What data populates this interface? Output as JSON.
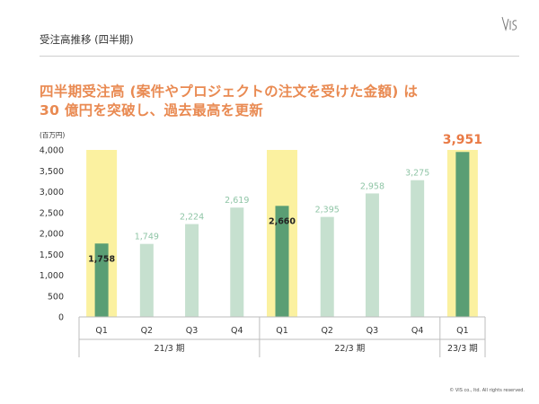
{
  "header": {
    "title": "受注高推移 (四半期)"
  },
  "headline": {
    "line1": "四半期受注高 (案件やプロジェクトの注文を受けた金額) は",
    "line2": "30 億円を突破し、過去最高を更新"
  },
  "footer": {
    "copyright": "© VIS co., ltd. All rights reserved."
  },
  "colors": {
    "accent": "#e98a52",
    "bar_dark": "#5a9e74",
    "bar_light": "#c6e0cf",
    "label_light": "#8fc5a6",
    "highlight": "#fbf1a0",
    "peak_label": "#e97a45"
  },
  "chart_data": {
    "type": "bar",
    "unit_label": "(百万円)",
    "ylim": [
      0,
      4000
    ],
    "y_ticks": [
      "0",
      "500",
      "1,000",
      "1,500",
      "2,000",
      "2,500",
      "3,000",
      "3,500",
      "4,000"
    ],
    "categories": [
      "Q1",
      "Q2",
      "Q3",
      "Q4",
      "Q1",
      "Q2",
      "Q3",
      "Q4",
      "Q1"
    ],
    "values": [
      1758,
      1749,
      2224,
      2619,
      2660,
      2395,
      2958,
      3275,
      3951
    ],
    "value_labels": [
      "1,758",
      "1,749",
      "2,224",
      "2,619",
      "2,660",
      "2,395",
      "2,958",
      "3,275",
      "3,951"
    ],
    "highlighted": [
      true,
      false,
      false,
      false,
      true,
      false,
      false,
      false,
      true
    ],
    "groups": [
      {
        "label": "21/3 期",
        "count": 4
      },
      {
        "label": "22/3 期",
        "count": 4
      },
      {
        "label": "23/3 期",
        "count": 1
      }
    ]
  }
}
